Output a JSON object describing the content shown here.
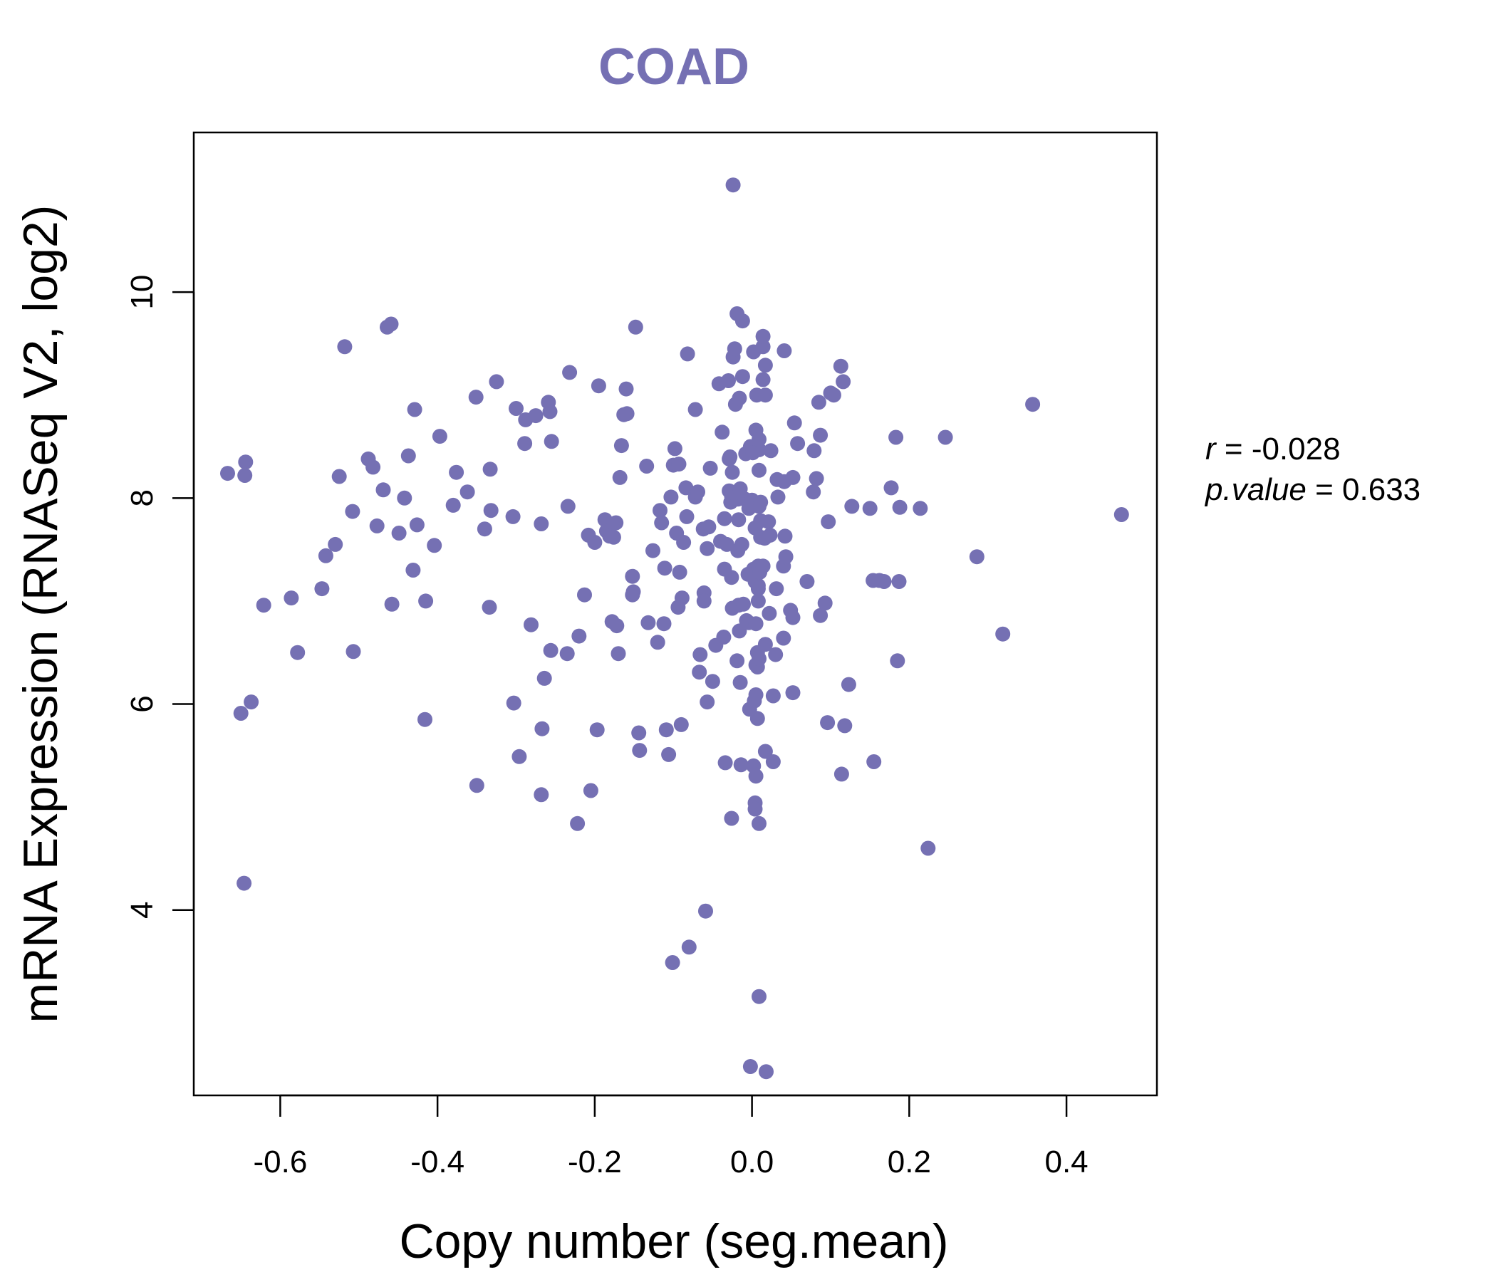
{
  "chart_data": {
    "type": "scatter",
    "title": "COAD",
    "xlabel": "Copy number (seg.mean)",
    "ylabel": "mRNA Expression (RNASeq V2, log2)",
    "xlim": [
      -0.71,
      0.515
    ],
    "ylim": [
      2.2,
      11.55
    ],
    "xticks": [
      -0.6,
      -0.4,
      -0.2,
      0.0,
      0.2,
      0.4
    ],
    "xtick_labels": [
      "-0.6",
      "-0.4",
      "-0.2",
      "0.0",
      "0.2",
      "0.4"
    ],
    "yticks": [
      4,
      6,
      8,
      10
    ],
    "ytick_labels": [
      "4",
      "6",
      "8",
      "10"
    ],
    "point_color": "#7570b3",
    "grid": false,
    "stats": {
      "r_label": "r",
      "r_value": "-0.028",
      "p_label": "p.value",
      "p_value": "0.633"
    },
    "points": [
      [
        -0.667,
        8.24
      ],
      [
        -0.644,
        8.35
      ],
      [
        -0.645,
        8.22
      ],
      [
        -0.65,
        5.91
      ],
      [
        -0.637,
        6.02
      ],
      [
        -0.646,
        4.26
      ],
      [
        -0.621,
        6.96
      ],
      [
        -0.586,
        7.03
      ],
      [
        -0.578,
        6.5
      ],
      [
        -0.547,
        7.12
      ],
      [
        -0.542,
        7.44
      ],
      [
        -0.53,
        7.55
      ],
      [
        -0.525,
        8.21
      ],
      [
        -0.518,
        9.47
      ],
      [
        -0.508,
        7.87
      ],
      [
        -0.507,
        6.51
      ],
      [
        -0.488,
        8.38
      ],
      [
        -0.482,
        8.3
      ],
      [
        -0.477,
        7.73
      ],
      [
        -0.469,
        8.08
      ],
      [
        -0.464,
        9.66
      ],
      [
        -0.459,
        9.69
      ],
      [
        -0.458,
        6.97
      ],
      [
        -0.449,
        7.66
      ],
      [
        -0.442,
        8.0
      ],
      [
        -0.437,
        8.41
      ],
      [
        -0.431,
        7.3
      ],
      [
        -0.429,
        8.86
      ],
      [
        -0.426,
        7.74
      ],
      [
        -0.416,
        5.85
      ],
      [
        -0.415,
        7.0
      ],
      [
        -0.404,
        7.54
      ],
      [
        -0.397,
        8.6
      ],
      [
        -0.38,
        7.93
      ],
      [
        -0.376,
        8.25
      ],
      [
        -0.362,
        8.06
      ],
      [
        -0.351,
        8.98
      ],
      [
        -0.35,
        5.21
      ],
      [
        -0.34,
        7.7
      ],
      [
        -0.334,
        6.94
      ],
      [
        -0.333,
        8.28
      ],
      [
        -0.332,
        7.88
      ],
      [
        -0.325,
        9.13
      ],
      [
        -0.304,
        7.82
      ],
      [
        -0.303,
        6.01
      ],
      [
        -0.3,
        8.87
      ],
      [
        -0.296,
        5.49
      ],
      [
        -0.289,
        8.53
      ],
      [
        -0.288,
        8.76
      ],
      [
        -0.281,
        6.77
      ],
      [
        -0.275,
        8.8
      ],
      [
        -0.268,
        5.12
      ],
      [
        -0.268,
        7.75
      ],
      [
        -0.267,
        5.76
      ],
      [
        -0.264,
        6.25
      ],
      [
        -0.259,
        8.93
      ],
      [
        -0.257,
        8.84
      ],
      [
        -0.256,
        6.52
      ],
      [
        -0.255,
        8.55
      ],
      [
        -0.235,
        6.49
      ],
      [
        -0.234,
        7.92
      ],
      [
        -0.232,
        9.22
      ],
      [
        -0.222,
        4.84
      ],
      [
        -0.22,
        6.66
      ],
      [
        -0.213,
        7.06
      ],
      [
        -0.208,
        7.64
      ],
      [
        -0.205,
        5.16
      ],
      [
        -0.2,
        7.57
      ],
      [
        -0.197,
        5.75
      ],
      [
        -0.195,
        9.09
      ],
      [
        -0.187,
        7.79
      ],
      [
        -0.185,
        7.68
      ],
      [
        -0.181,
        7.63
      ],
      [
        -0.178,
        6.8
      ],
      [
        -0.176,
        7.62
      ],
      [
        -0.173,
        7.76
      ],
      [
        -0.172,
        6.76
      ],
      [
        -0.17,
        6.49
      ],
      [
        -0.168,
        8.2
      ],
      [
        -0.166,
        8.51
      ],
      [
        -0.163,
        8.81
      ],
      [
        -0.16,
        9.06
      ],
      [
        -0.159,
        8.82
      ],
      [
        -0.152,
        7.24
      ],
      [
        -0.152,
        7.06
      ],
      [
        -0.151,
        7.09
      ],
      [
        -0.148,
        9.66
      ],
      [
        -0.144,
        5.72
      ],
      [
        -0.143,
        5.55
      ],
      [
        -0.134,
        8.31
      ],
      [
        -0.132,
        6.79
      ],
      [
        -0.126,
        7.49
      ],
      [
        -0.12,
        6.6
      ],
      [
        -0.117,
        7.88
      ],
      [
        -0.115,
        7.76
      ],
      [
        -0.112,
        6.78
      ],
      [
        -0.111,
        7.32
      ],
      [
        -0.109,
        5.75
      ],
      [
        -0.106,
        5.51
      ],
      [
        -0.103,
        8.01
      ],
      [
        -0.101,
        3.49
      ],
      [
        -0.1,
        8.32
      ],
      [
        -0.098,
        8.48
      ],
      [
        -0.096,
        7.66
      ],
      [
        -0.094,
        6.94
      ],
      [
        -0.093,
        8.33
      ],
      [
        -0.092,
        7.28
      ],
      [
        -0.09,
        5.8
      ],
      [
        -0.089,
        7.03
      ],
      [
        -0.087,
        7.57
      ],
      [
        -0.084,
        8.1
      ],
      [
        -0.083,
        7.82
      ],
      [
        -0.082,
        9.4
      ],
      [
        -0.08,
        3.64
      ],
      [
        -0.072,
        8.01
      ],
      [
        -0.072,
        8.86
      ],
      [
        -0.069,
        8.06
      ],
      [
        -0.067,
        6.31
      ],
      [
        -0.066,
        6.48
      ],
      [
        -0.062,
        7.7
      ],
      [
        -0.061,
        7.08
      ],
      [
        -0.061,
        7.0
      ],
      [
        -0.059,
        3.99
      ],
      [
        -0.057,
        6.02
      ],
      [
        -0.057,
        7.51
      ],
      [
        -0.055,
        7.72
      ],
      [
        -0.053,
        8.29
      ],
      [
        -0.05,
        6.22
      ],
      [
        -0.046,
        6.57
      ],
      [
        -0.042,
        9.11
      ],
      [
        -0.04,
        7.58
      ],
      [
        -0.038,
        8.64
      ],
      [
        -0.036,
        6.65
      ],
      [
        -0.035,
        7.8
      ],
      [
        -0.035,
        7.31
      ],
      [
        -0.034,
        5.43
      ],
      [
        -0.032,
        7.55
      ],
      [
        -0.03,
        9.14
      ],
      [
        -0.029,
        8.38
      ],
      [
        -0.029,
        8.07
      ],
      [
        -0.028,
        8.4
      ],
      [
        -0.027,
        7.96
      ],
      [
        -0.026,
        8.02
      ],
      [
        -0.026,
        7.23
      ],
      [
        -0.026,
        4.89
      ],
      [
        -0.025,
        6.93
      ],
      [
        -0.025,
        8.25
      ],
      [
        -0.024,
        9.37
      ],
      [
        -0.024,
        11.04
      ],
      [
        -0.023,
        8.0
      ],
      [
        -0.022,
        9.45
      ],
      [
        -0.021,
        8.91
      ],
      [
        -0.019,
        9.79
      ],
      [
        -0.019,
        6.42
      ],
      [
        -0.018,
        7.99
      ],
      [
        -0.018,
        7.49
      ],
      [
        -0.017,
        6.96
      ],
      [
        -0.017,
        7.79
      ],
      [
        -0.016,
        8.97
      ],
      [
        -0.016,
        6.71
      ],
      [
        -0.015,
        6.21
      ],
      [
        -0.015,
        8.09
      ],
      [
        -0.014,
        5.41
      ],
      [
        -0.013,
        7.55
      ],
      [
        -0.012,
        9.72
      ],
      [
        -0.012,
        9.18
      ],
      [
        -0.011,
        6.97
      ],
      [
        -0.009,
        7.99
      ],
      [
        -0.008,
        8.43
      ],
      [
        -0.007,
        6.81
      ],
      [
        -0.005,
        7.26
      ],
      [
        -0.004,
        7.9
      ],
      [
        -0.004,
        6.79
      ],
      [
        -0.003,
        5.95
      ],
      [
        -0.002,
        2.48
      ],
      [
        -0.002,
        8.5
      ],
      [
        0.0,
        7.98
      ],
      [
        0.001,
        8.44
      ],
      [
        0.002,
        7.31
      ],
      [
        0.002,
        9.42
      ],
      [
        0.002,
        5.4
      ],
      [
        0.003,
        6.03
      ],
      [
        0.004,
        7.19
      ],
      [
        0.004,
        7.71
      ],
      [
        0.004,
        5.04
      ],
      [
        0.004,
        4.98
      ],
      [
        0.005,
        6.38
      ],
      [
        0.005,
        6.09
      ],
      [
        0.005,
        5.3
      ],
      [
        0.005,
        8.66
      ],
      [
        0.005,
        6.78
      ],
      [
        0.006,
        9.0
      ],
      [
        0.007,
        5.86
      ],
      [
        0.007,
        6.36
      ],
      [
        0.007,
        6.5
      ],
      [
        0.008,
        7.15
      ],
      [
        0.008,
        7.12
      ],
      [
        0.008,
        7.34
      ],
      [
        0.008,
        7.0
      ],
      [
        0.009,
        7.92
      ],
      [
        0.009,
        4.84
      ],
      [
        0.009,
        6.44
      ],
      [
        0.009,
        8.47
      ],
      [
        0.009,
        8.57
      ],
      [
        0.009,
        8.27
      ],
      [
        0.009,
        3.16
      ],
      [
        0.01,
        7.28
      ],
      [
        0.011,
        7.78
      ],
      [
        0.011,
        7.62
      ],
      [
        0.011,
        7.96
      ],
      [
        0.014,
        9.47
      ],
      [
        0.014,
        9.57
      ],
      [
        0.014,
        7.34
      ],
      [
        0.014,
        9.15
      ],
      [
        0.016,
        7.61
      ],
      [
        0.017,
        9.0
      ],
      [
        0.017,
        5.54
      ],
      [
        0.017,
        9.29
      ],
      [
        0.017,
        6.58
      ],
      [
        0.018,
        2.43
      ],
      [
        0.021,
        7.77
      ],
      [
        0.022,
        6.88
      ],
      [
        0.023,
        7.64
      ],
      [
        0.024,
        8.46
      ],
      [
        0.027,
        6.08
      ],
      [
        0.027,
        5.44
      ],
      [
        0.03,
        6.48
      ],
      [
        0.031,
        7.12
      ],
      [
        0.032,
        8.18
      ],
      [
        0.033,
        8.01
      ],
      [
        0.04,
        6.64
      ],
      [
        0.04,
        7.34
      ],
      [
        0.041,
        8.16
      ],
      [
        0.041,
        9.43
      ],
      [
        0.042,
        7.63
      ],
      [
        0.043,
        7.43
      ],
      [
        0.049,
        6.91
      ],
      [
        0.052,
        6.11
      ],
      [
        0.052,
        8.2
      ],
      [
        0.052,
        6.84
      ],
      [
        0.054,
        8.73
      ],
      [
        0.058,
        8.53
      ],
      [
        0.07,
        7.19
      ],
      [
        0.078,
        8.06
      ],
      [
        0.079,
        8.46
      ],
      [
        0.082,
        8.19
      ],
      [
        0.085,
        8.93
      ],
      [
        0.087,
        8.61
      ],
      [
        0.087,
        6.86
      ],
      [
        0.093,
        6.98
      ],
      [
        0.096,
        5.82
      ],
      [
        0.097,
        7.77
      ],
      [
        0.1,
        9.02
      ],
      [
        0.104,
        9.0
      ],
      [
        0.113,
        9.28
      ],
      [
        0.114,
        5.32
      ],
      [
        0.116,
        9.13
      ],
      [
        0.118,
        5.79
      ],
      [
        0.123,
        6.19
      ],
      [
        0.127,
        7.92
      ],
      [
        0.15,
        7.9
      ],
      [
        0.154,
        7.2
      ],
      [
        0.155,
        5.44
      ],
      [
        0.162,
        7.2
      ],
      [
        0.168,
        7.19
      ],
      [
        0.177,
        8.1
      ],
      [
        0.183,
        8.59
      ],
      [
        0.185,
        6.42
      ],
      [
        0.187,
        7.19
      ],
      [
        0.188,
        7.91
      ],
      [
        0.214,
        7.9
      ],
      [
        0.224,
        4.6
      ],
      [
        0.246,
        8.59
      ],
      [
        0.286,
        7.43
      ],
      [
        0.319,
        6.68
      ],
      [
        0.357,
        8.91
      ],
      [
        0.47,
        7.84
      ]
    ]
  }
}
